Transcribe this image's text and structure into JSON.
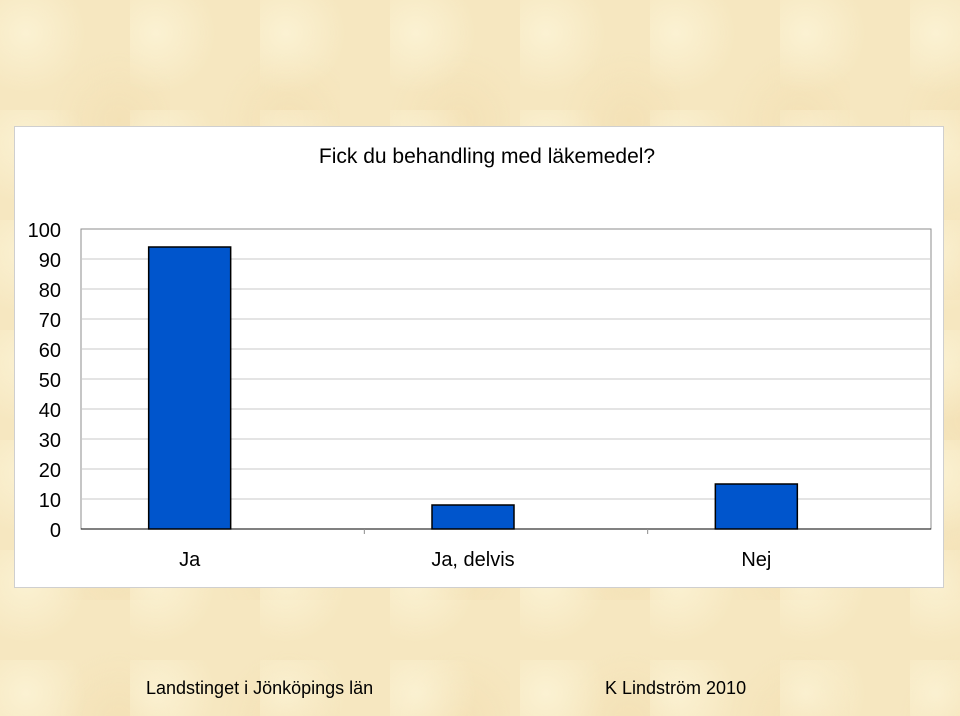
{
  "chart_data": {
    "type": "bar",
    "title": "Fick du behandling med läkemedel?",
    "categories": [
      "Ja",
      "Ja, delvis",
      "Nej"
    ],
    "values": [
      94,
      8,
      15
    ],
    "ylim": [
      0,
      100
    ],
    "yticks": [
      "0",
      "10",
      "20",
      "30",
      "40",
      "50",
      "60",
      "70",
      "80",
      "90",
      "100"
    ],
    "xlabel": "",
    "ylabel": "",
    "grid": true,
    "bar_color": "#0055cc"
  },
  "footer": {
    "left": "Landstinget i Jönköpings län",
    "right": "K Lindström 2010"
  }
}
